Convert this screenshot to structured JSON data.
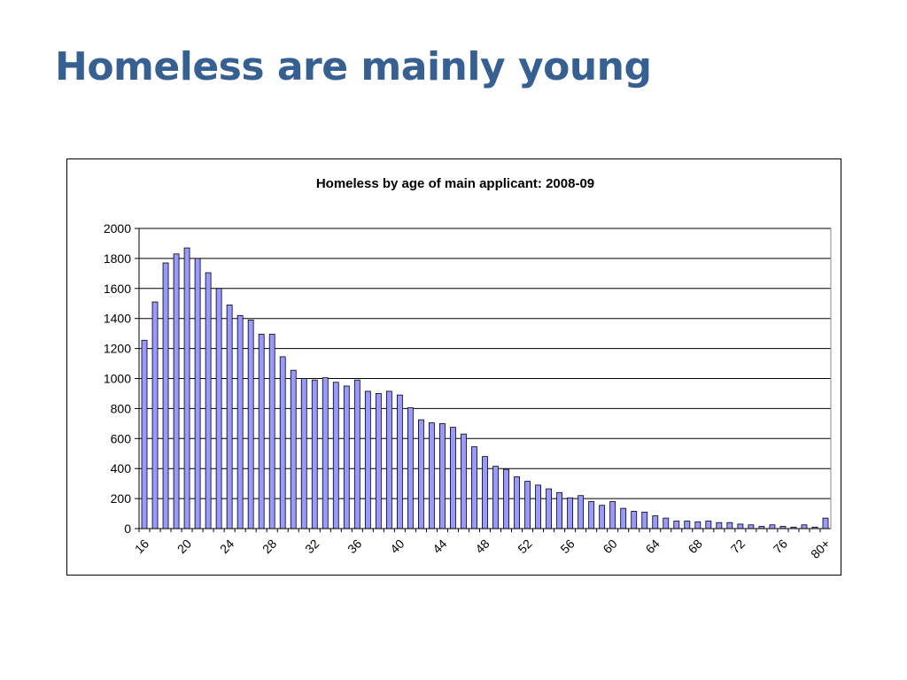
{
  "slide": {
    "title": "Homeless are mainly young"
  },
  "colors": {
    "title": "#376092",
    "bar_fill": "#9999ff",
    "bar_stroke": "#000000",
    "gridline": "#000000"
  },
  "chart_data": {
    "type": "bar",
    "title": "Homeless by age of main applicant: 2008-09",
    "xlabel": "",
    "ylabel": "",
    "ylim": [
      0,
      2000
    ],
    "yticks": [
      0,
      200,
      400,
      600,
      800,
      1000,
      1200,
      1400,
      1600,
      1800,
      2000
    ],
    "grid": true,
    "legend": "none",
    "categories": [
      "16",
      "17",
      "18",
      "19",
      "20",
      "21",
      "22",
      "23",
      "24",
      "25",
      "26",
      "27",
      "28",
      "29",
      "30",
      "31",
      "32",
      "33",
      "34",
      "35",
      "36",
      "37",
      "38",
      "39",
      "40",
      "41",
      "42",
      "43",
      "44",
      "45",
      "46",
      "47",
      "48",
      "49",
      "50",
      "51",
      "52",
      "53",
      "54",
      "55",
      "56",
      "57",
      "58",
      "59",
      "60",
      "61",
      "62",
      "63",
      "64",
      "65",
      "66",
      "67",
      "68",
      "69",
      "70",
      "71",
      "72",
      "73",
      "74",
      "75",
      "76",
      "77",
      "78",
      "79",
      "80+"
    ],
    "shown_category_labels": [
      "16",
      "20",
      "24",
      "28",
      "32",
      "36",
      "40",
      "44",
      "48",
      "52",
      "56",
      "60",
      "64",
      "68",
      "72",
      "76",
      "80+"
    ],
    "values": [
      1255,
      1510,
      1770,
      1830,
      1870,
      1800,
      1705,
      1600,
      1490,
      1420,
      1390,
      1295,
      1295,
      1145,
      1055,
      1000,
      990,
      1005,
      975,
      950,
      990,
      915,
      900,
      915,
      890,
      805,
      725,
      705,
      700,
      675,
      630,
      545,
      480,
      415,
      395,
      345,
      315,
      290,
      265,
      240,
      205,
      220,
      180,
      155,
      180,
      135,
      115,
      110,
      85,
      70,
      50,
      50,
      45,
      50,
      40,
      40,
      30,
      25,
      15,
      25,
      15,
      10,
      25,
      10,
      70
    ]
  }
}
